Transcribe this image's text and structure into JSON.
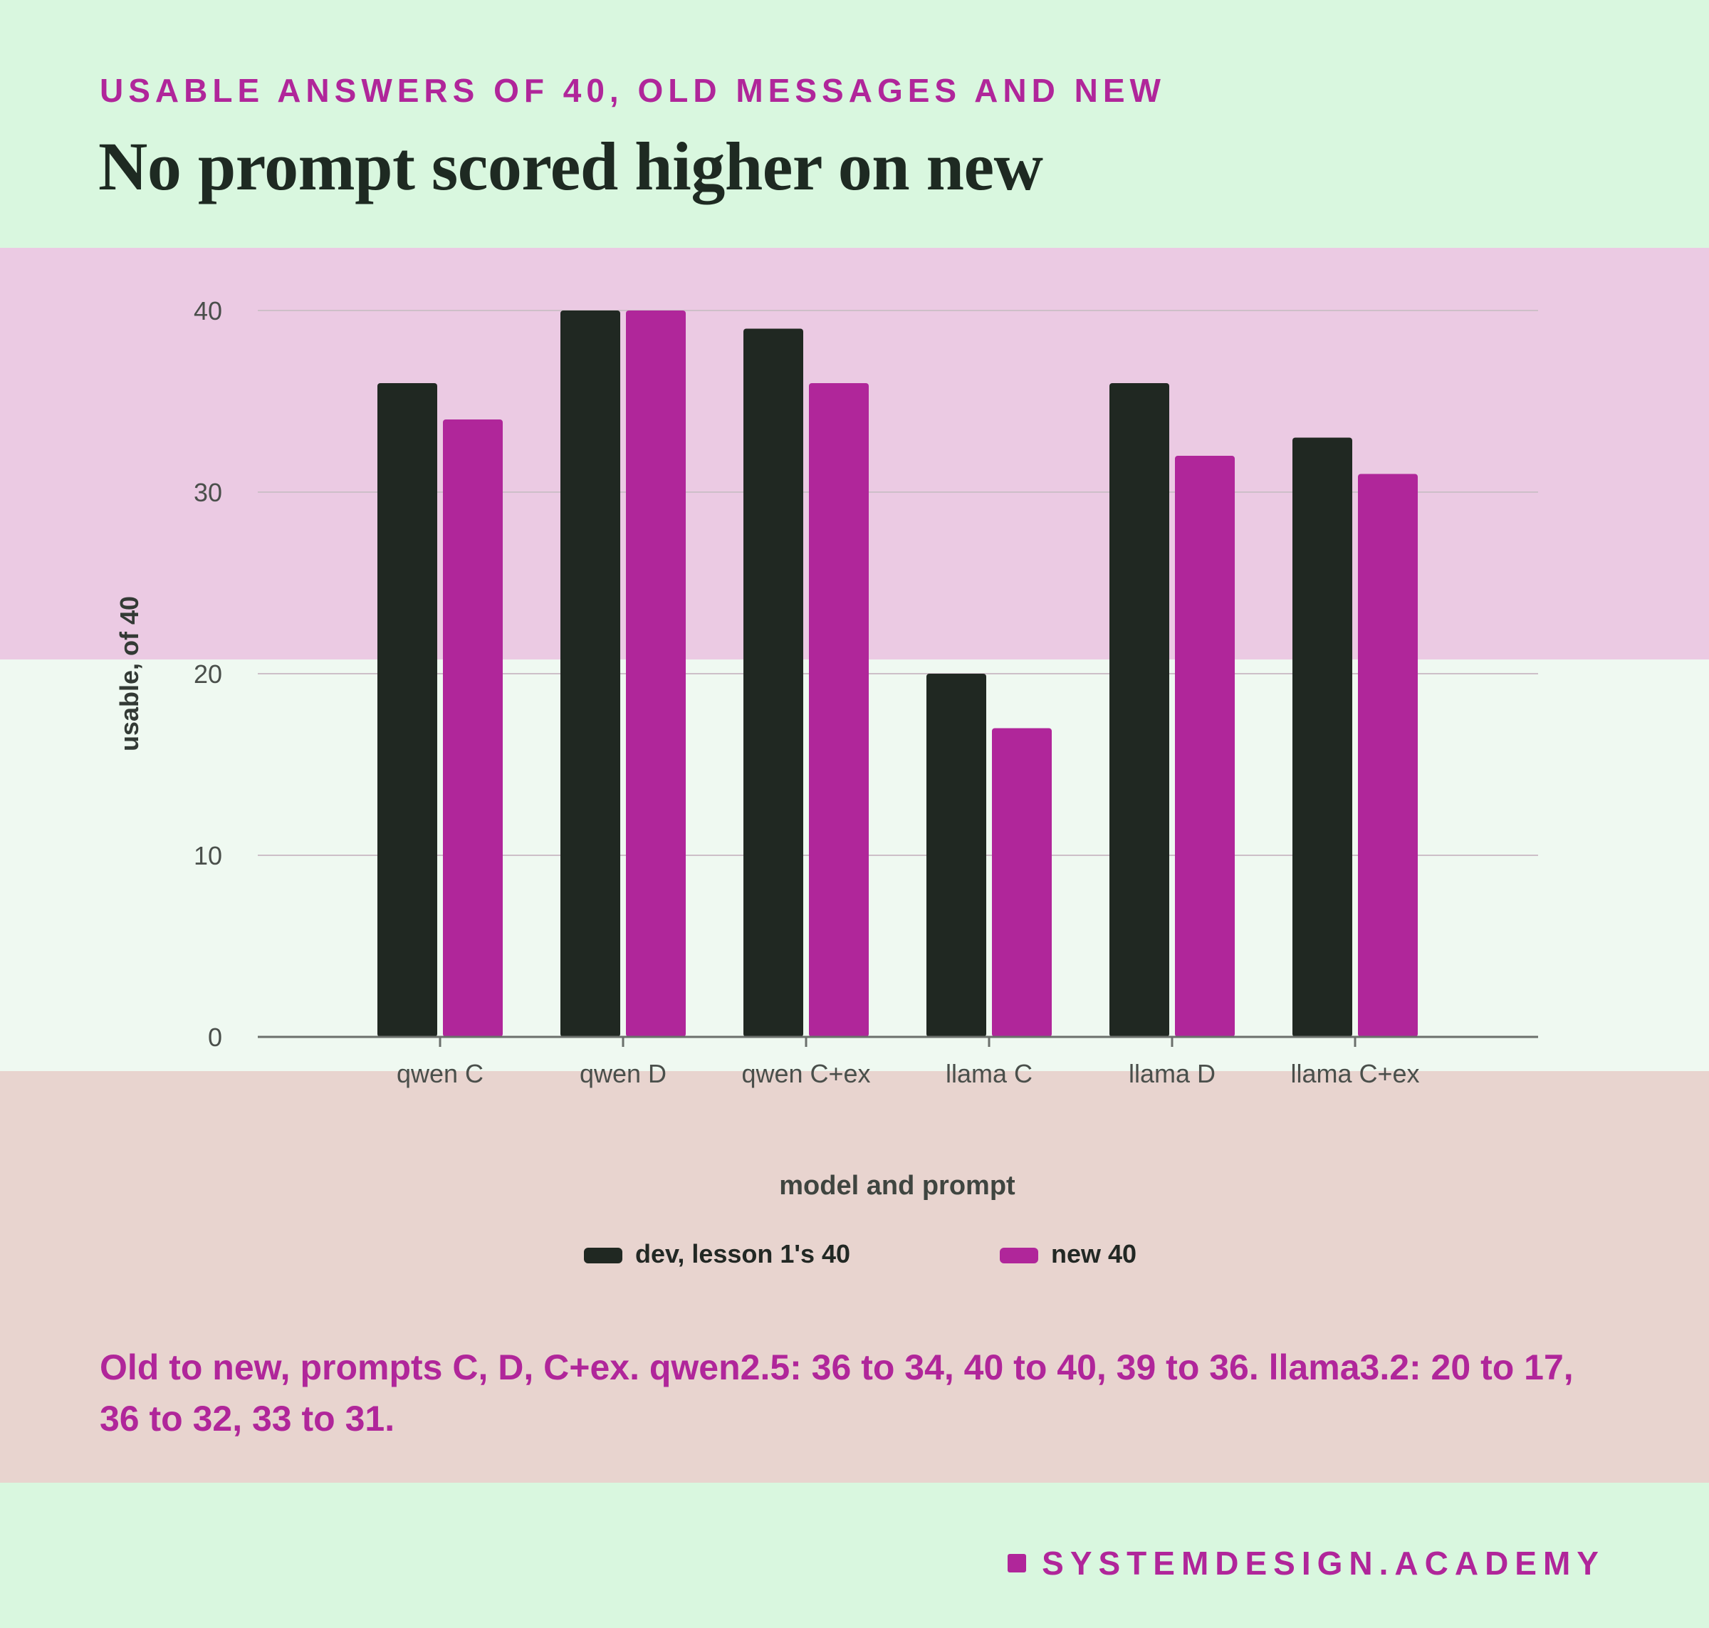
{
  "header": {
    "eyebrow": "USABLE ANSWERS OF 40, OLD MESSAGES AND NEW",
    "headline": "No prompt scored higher on new"
  },
  "colors": {
    "background": "#d9f7df",
    "band_pink": "#ebcae3",
    "band_light": "#eff9f1",
    "band_tan": "#e8d4cf",
    "accent": "#b0269a",
    "dark": "#202822"
  },
  "chart_data": {
    "type": "bar",
    "categories": [
      "qwen C",
      "qwen D",
      "qwen C+ex",
      "llama C",
      "llama D",
      "llama C+ex"
    ],
    "series": [
      {
        "name": "dev, lesson 1's 40",
        "color": "#202822",
        "values": [
          36,
          40,
          39,
          20,
          36,
          33
        ]
      },
      {
        "name": "new 40",
        "color": "#b0269a",
        "values": [
          34,
          40,
          36,
          17,
          32,
          31
        ]
      }
    ],
    "xlabel": "model and prompt",
    "ylabel": "usable, of 40",
    "ylim": [
      0,
      40
    ],
    "yticks": [
      0,
      10,
      20,
      30,
      40
    ],
    "grid": true,
    "legend_position": "bottom"
  },
  "caption": "Old to new, prompts C, D, C+ex. qwen2.5: 36 to 34, 40 to 40, 39 to 36. llama3.2: 20 to 17, 36 to 32, 33 to 31.",
  "brand": "SYSTEMDESIGN.ACADEMY"
}
